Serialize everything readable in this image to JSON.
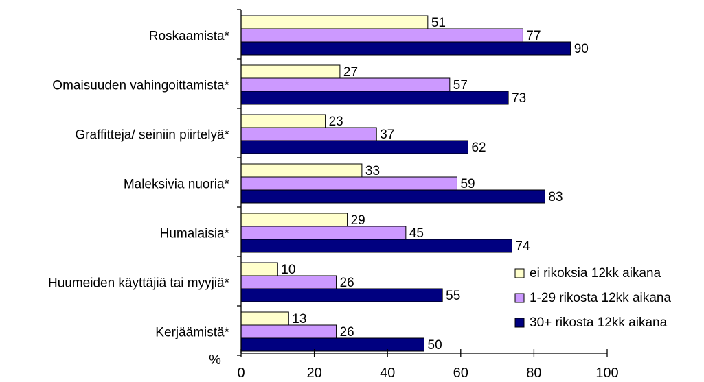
{
  "chart_data": {
    "type": "bar",
    "orientation": "horizontal",
    "ylabel": "%",
    "xlim": [
      0,
      100
    ],
    "x_ticks": [
      "0",
      "20",
      "40",
      "60",
      "80",
      "100"
    ],
    "grid": false,
    "legend_position": "bottom-right",
    "categories": [
      "Roskaamista*",
      "Omaisuuden vahingoittamista*",
      "Graffitteja/ seiniin piirtelyä*",
      "Maleksivia nuoria*",
      "Humalaisia*",
      "Huumeiden käyttäjiä tai myyjiä*",
      "Kerjäämistä*"
    ],
    "series": [
      {
        "name": "ei rikoksia 12kk aikana",
        "color": "#ffffcc",
        "values": [
          51,
          27,
          23,
          33,
          29,
          10,
          13
        ]
      },
      {
        "name": "1-29 rikosta 12kk aikana",
        "color": "#cc99ff",
        "values": [
          77,
          57,
          37,
          59,
          45,
          26,
          26
        ]
      },
      {
        "name": "30+ rikosta 12kk aikana",
        "color": "#000080",
        "values": [
          90,
          73,
          62,
          83,
          74,
          55,
          50
        ]
      }
    ]
  }
}
